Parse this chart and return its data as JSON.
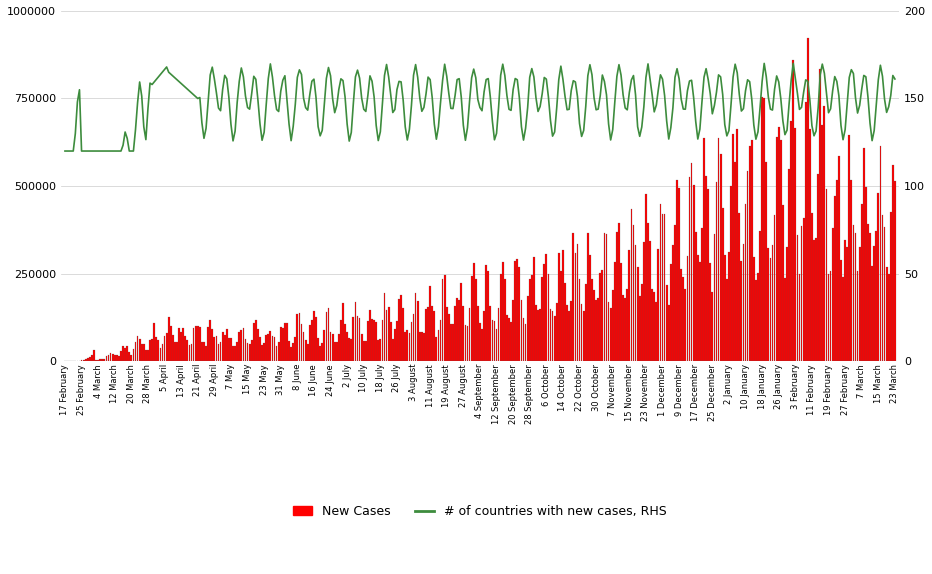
{
  "background_color": "#ffffff",
  "bar_color": "#ff0000",
  "bar_edge_color": "#555555",
  "line_color": "#3d8c3d",
  "legend_bar_label": "New Cases",
  "legend_line_label": "# of countries with new cases, RHS",
  "ylim_left": [
    0,
    1000000
  ],
  "ylim_right": [
    0,
    200
  ],
  "yticks_left": [
    0,
    250000,
    500000,
    750000,
    1000000
  ],
  "yticks_right": [
    0,
    50,
    100,
    150,
    200
  ],
  "x_tick_labels": [
    "17 February",
    "25 February",
    "4 March",
    "12 March",
    "20 March",
    "28 March",
    "5 April",
    "13 April",
    "21 April",
    "29 April",
    "7 May",
    "15 May",
    "23 May",
    "31 May",
    "8 June",
    "16 June",
    "24 June",
    "2 July",
    "10 July",
    "18 July",
    "26 July",
    "3 August",
    "11 August",
    "19 August",
    "27 August",
    "4 September",
    "12 September",
    "20 September",
    "28 September",
    "6 October",
    "14 October",
    "22 October",
    "30 October",
    "7 November",
    "15 November",
    "23 November",
    "1 December",
    "9 December",
    "17 December",
    "25 December",
    "2 January",
    "10 January",
    "18 January",
    "26 January",
    "3 February",
    "11 February",
    "19 February",
    "27 February",
    "7 March",
    "15 March",
    "23 March"
  ],
  "tick_positions_days": [
    0,
    8,
    16,
    24,
    32,
    40,
    48,
    56,
    64,
    72,
    80,
    88,
    96,
    104,
    112,
    120,
    128,
    136,
    144,
    152,
    160,
    168,
    176,
    184,
    192,
    200,
    208,
    216,
    224,
    232,
    240,
    248,
    256,
    264,
    272,
    280,
    288,
    296,
    304,
    312,
    320,
    328,
    336,
    344,
    352,
    360,
    368,
    376,
    384,
    392,
    400
  ]
}
